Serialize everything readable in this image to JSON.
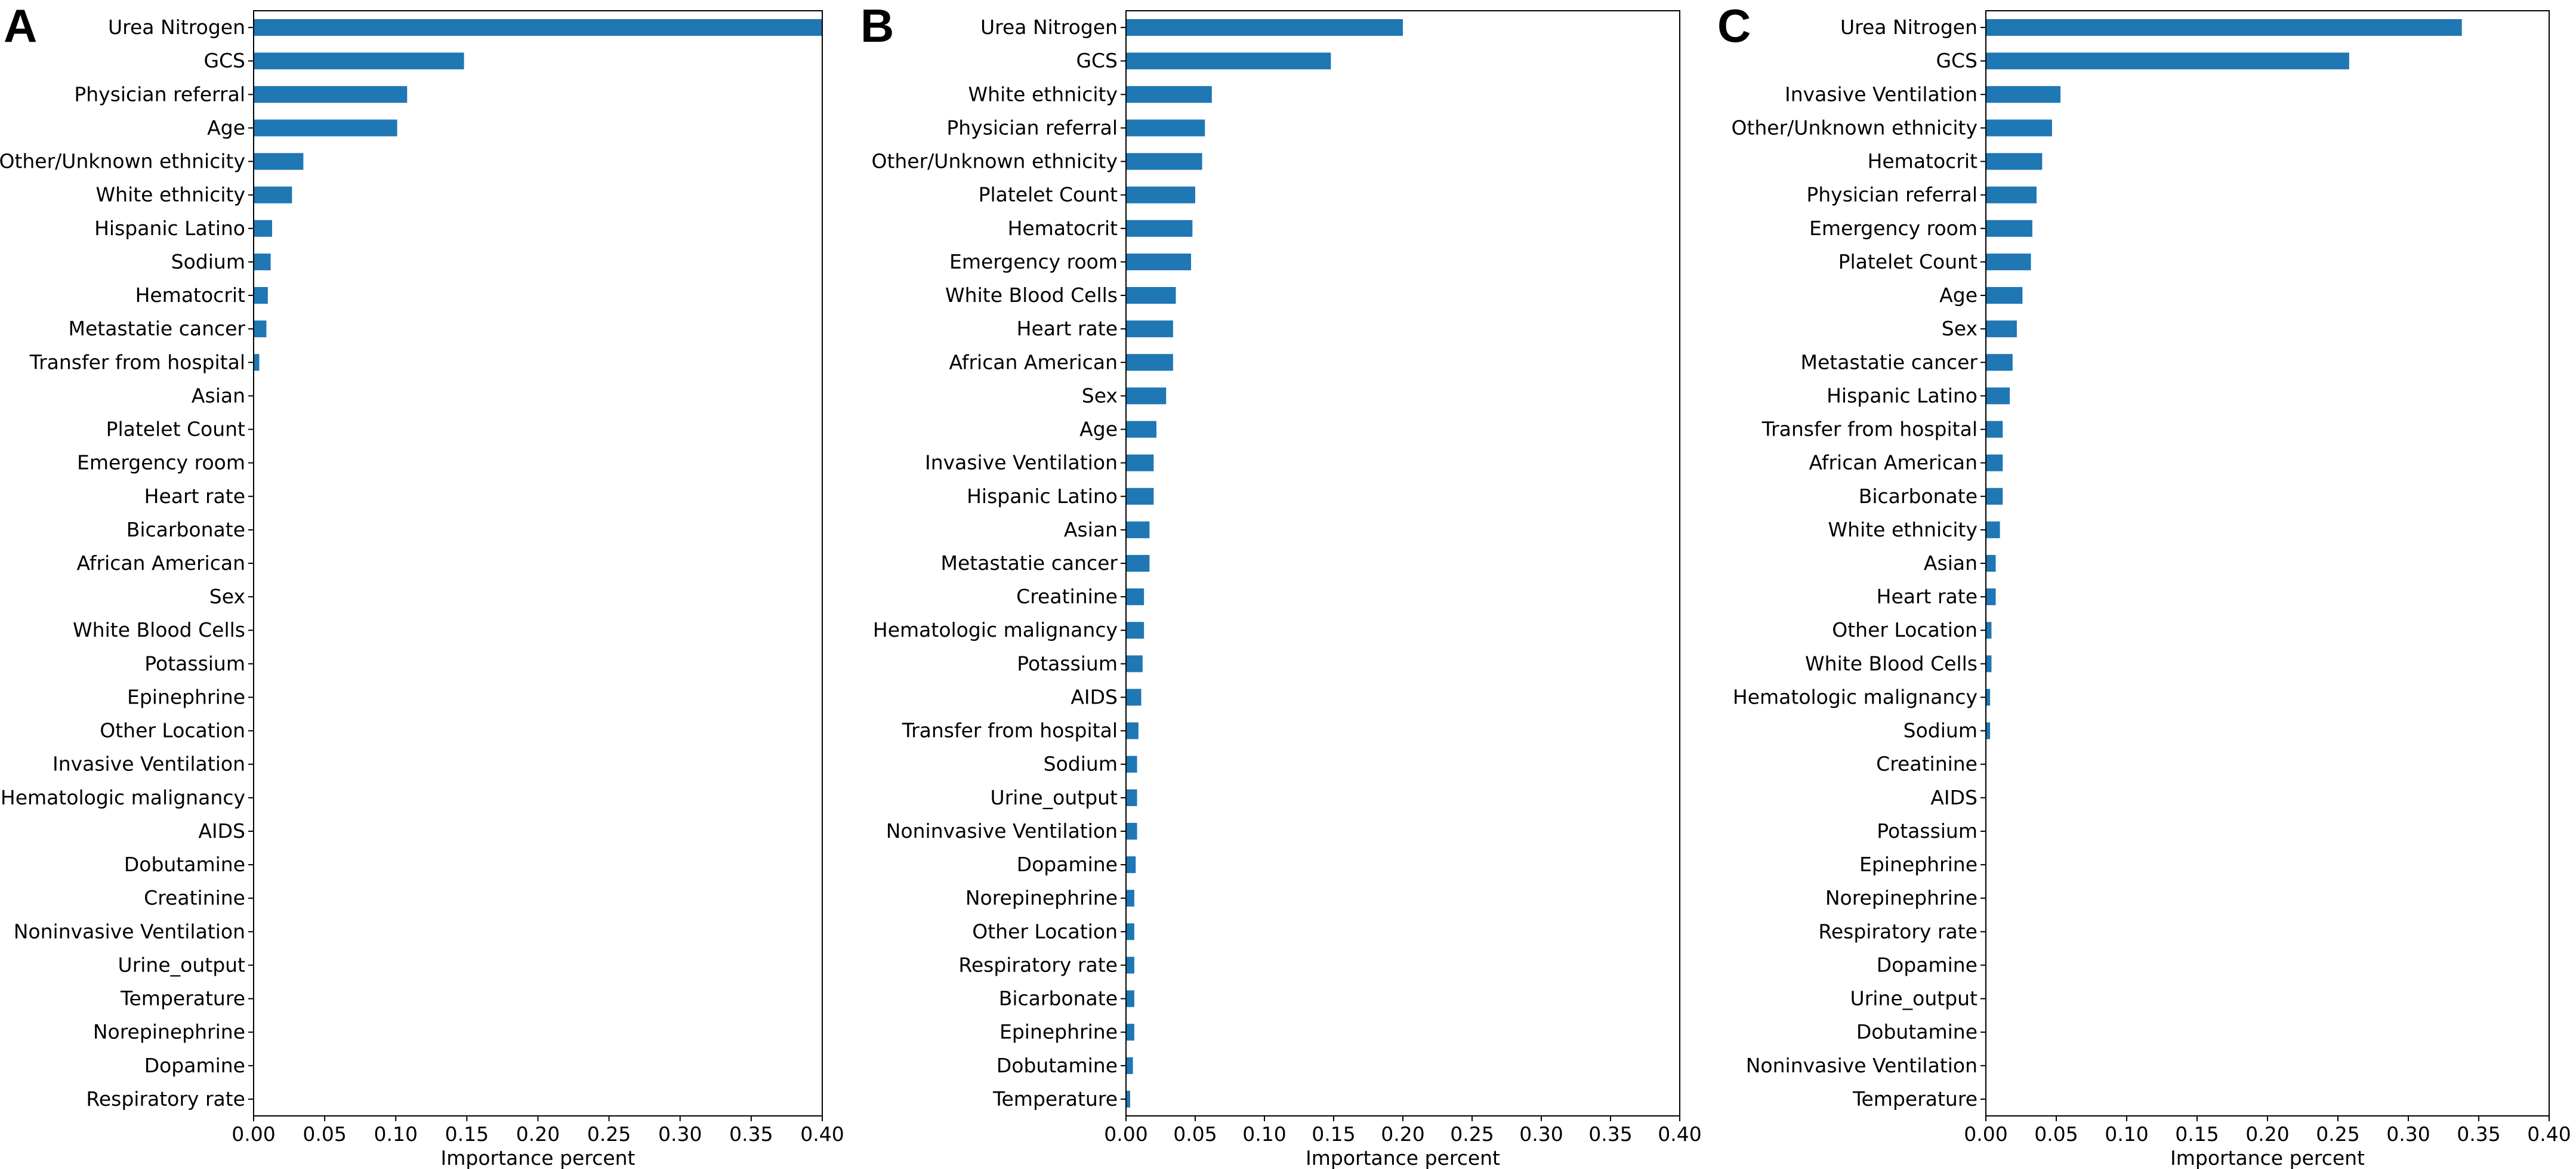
{
  "figure": {
    "bar_color": "#1f77b4"
  },
  "chart_data": [
    {
      "type": "bar",
      "orientation": "horizontal",
      "panel_label": "A",
      "xlabel": "Importance percent",
      "xlim": [
        0,
        0.4
      ],
      "xticks": [
        "0.00",
        "0.05",
        "0.10",
        "0.15",
        "0.20",
        "0.25",
        "0.30",
        "0.35",
        "0.40"
      ],
      "categories": [
        "Urea Nitrogen",
        "GCS",
        "Physician referral",
        "Age",
        "Other/Unknown ethnicity",
        "White ethnicity",
        "Hispanic Latino",
        "Sodium",
        "Hematocrit",
        "Metastatie cancer",
        "Transfer from hospital",
        "Asian",
        "Platelet Count",
        "Emergency room",
        "Heart rate",
        "Bicarbonate",
        "African American",
        "Sex",
        "White Blood Cells",
        "Potassium",
        "Epinephrine",
        "Other Location",
        "Invasive Ventilation",
        "Hematologic malignancy",
        "AIDS",
        "Dobutamine",
        "Creatinine",
        "Noninvasive Ventilation",
        "Urine_output",
        "Temperature",
        "Norepinephrine",
        "Dopamine",
        "Respiratory rate"
      ],
      "values": [
        0.4,
        0.148,
        0.108,
        0.101,
        0.035,
        0.027,
        0.013,
        0.012,
        0.01,
        0.009,
        0.004,
        0,
        0,
        0,
        0,
        0,
        0,
        0,
        0,
        0,
        0,
        0,
        0,
        0,
        0,
        0,
        0,
        0,
        0,
        0,
        0,
        0,
        0
      ]
    },
    {
      "type": "bar",
      "orientation": "horizontal",
      "panel_label": "B",
      "xlabel": "Importance percent",
      "xlim": [
        0,
        0.4
      ],
      "xticks": [
        "0.00",
        "0.05",
        "0.10",
        "0.15",
        "0.20",
        "0.25",
        "0.30",
        "0.35",
        "0.40"
      ],
      "categories": [
        "Urea Nitrogen",
        "GCS",
        "White ethnicity",
        "Physician referral",
        "Other/Unknown ethnicity",
        "Platelet Count",
        "Hematocrit",
        "Emergency room",
        "White Blood Cells",
        "Heart rate",
        "African American",
        "Sex",
        "Age",
        "Invasive Ventilation",
        "Hispanic Latino",
        "Asian",
        "Metastatie cancer",
        "Creatinine",
        "Hematologic malignancy",
        "Potassium",
        "AIDS",
        "Transfer from hospital",
        "Sodium",
        "Urine_output",
        "Noninvasive Ventilation",
        "Dopamine",
        "Norepinephrine",
        "Other Location",
        "Respiratory rate",
        "Bicarbonate",
        "Epinephrine",
        "Dobutamine",
        "Temperature"
      ],
      "values": [
        0.2,
        0.148,
        0.062,
        0.057,
        0.055,
        0.05,
        0.048,
        0.047,
        0.036,
        0.034,
        0.034,
        0.029,
        0.022,
        0.02,
        0.02,
        0.017,
        0.017,
        0.013,
        0.013,
        0.012,
        0.011,
        0.009,
        0.008,
        0.008,
        0.008,
        0.007,
        0.006,
        0.006,
        0.006,
        0.006,
        0.006,
        0.005,
        0.003
      ]
    },
    {
      "type": "bar",
      "orientation": "horizontal",
      "panel_label": "C",
      "xlabel": "Importance percent",
      "xlim": [
        0,
        0.4
      ],
      "xticks": [
        "0.00",
        "0.05",
        "0.10",
        "0.15",
        "0.20",
        "0.25",
        "0.30",
        "0.35",
        "0.40"
      ],
      "categories": [
        "Urea Nitrogen",
        "GCS",
        "Invasive Ventilation",
        "Other/Unknown ethnicity",
        "Hematocrit",
        "Physician referral",
        "Emergency room",
        "Platelet Count",
        "Age",
        "Sex",
        "Metastatie cancer",
        "Hispanic Latino",
        "Transfer from hospital",
        "African American",
        "Bicarbonate",
        "White ethnicity",
        "Asian",
        "Heart rate",
        "Other Location",
        "White Blood Cells",
        "Hematologic malignancy",
        "Sodium",
        "Creatinine",
        "AIDS",
        "Potassium",
        "Epinephrine",
        "Norepinephrine",
        "Respiratory rate",
        "Dopamine",
        "Urine_output",
        "Dobutamine",
        "Noninvasive Ventilation",
        "Temperature"
      ],
      "values": [
        0.338,
        0.258,
        0.053,
        0.047,
        0.04,
        0.036,
        0.033,
        0.032,
        0.026,
        0.022,
        0.019,
        0.017,
        0.012,
        0.012,
        0.012,
        0.01,
        0.007,
        0.007,
        0.004,
        0.004,
        0.003,
        0.003,
        0,
        0,
        0,
        0,
        0,
        0,
        0,
        0,
        0,
        0,
        0
      ]
    }
  ]
}
